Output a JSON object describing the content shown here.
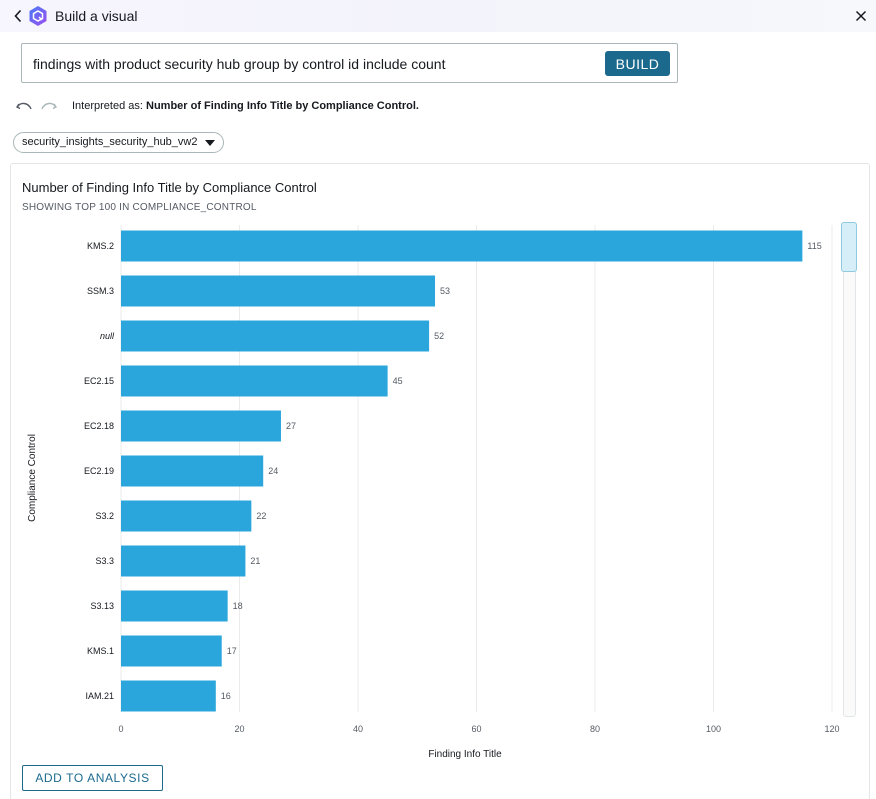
{
  "window": {
    "title": "Build a visual"
  },
  "query": {
    "value": "findings with product security hub group by control id include count",
    "build_label": "BUILD"
  },
  "interpretation": {
    "prefix": "Interpreted as:",
    "value": "Number of Finding Info Title by Compliance Control."
  },
  "dataset": {
    "selected": "security_insights_security_hub_vw2"
  },
  "chart": {
    "title": "Number of Finding Info Title by Compliance Control",
    "subtitle": "SHOWING TOP 100 IN COMPLIANCE_CONTROL"
  },
  "chart_data": {
    "type": "bar",
    "orientation": "horizontal",
    "categories": [
      "KMS.2",
      "SSM.3",
      "null",
      "EC2.15",
      "EC2.18",
      "EC2.19",
      "S3.2",
      "S3.3",
      "S3.13",
      "KMS.1",
      "IAM.21"
    ],
    "values": [
      115,
      53,
      52,
      45,
      27,
      24,
      22,
      21,
      18,
      17,
      16
    ],
    "xlabel": "Finding Info Title",
    "ylabel": "Compliance Control",
    "xlim": [
      0,
      120
    ],
    "xticks": [
      0,
      20,
      40,
      60,
      80,
      100,
      120
    ],
    "grid": true,
    "bar_color": "#2aa6dc"
  },
  "actions": {
    "add_label": "ADD TO ANALYSIS"
  },
  "colors": {
    "accent": "#1b6a8e",
    "bar": "#2aa6dc"
  },
  "icons": {
    "back": "chevron-left-icon",
    "logo": "quicksight-q-logo-icon",
    "close": "close-icon",
    "undo": "undo-icon",
    "redo": "redo-icon",
    "dropdown": "caret-down-icon"
  }
}
